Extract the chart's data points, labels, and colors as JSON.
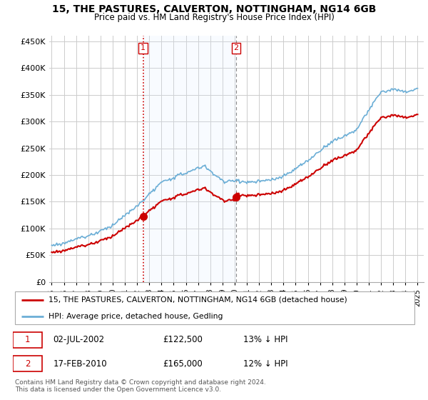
{
  "title": "15, THE PASTURES, CALVERTON, NOTTINGHAM, NG14 6GB",
  "subtitle": "Price paid vs. HM Land Registry's House Price Index (HPI)",
  "legend_line1": "15, THE PASTURES, CALVERTON, NOTTINGHAM, NG14 6GB (detached house)",
  "legend_line2": "HPI: Average price, detached house, Gedling",
  "transaction1_label": "1",
  "transaction1_date": "02-JUL-2002",
  "transaction1_price": "£122,500",
  "transaction1_hpi": "13% ↓ HPI",
  "transaction2_label": "2",
  "transaction2_date": "17-FEB-2010",
  "transaction2_price": "£165,000",
  "transaction2_hpi": "12% ↓ HPI",
  "footnote": "Contains HM Land Registry data © Crown copyright and database right 2024.\nThis data is licensed under the Open Government Licence v3.0.",
  "ylim": [
    0,
    460000
  ],
  "yticks": [
    0,
    50000,
    100000,
    150000,
    200000,
    250000,
    300000,
    350000,
    400000,
    450000
  ],
  "hpi_color": "#6baed6",
  "price_color": "#cc0000",
  "vline1_color": "#cc0000",
  "vline2_color": "#888888",
  "marker_color": "#cc0000",
  "span_color": "#ddeeff",
  "background_color": "#ffffff",
  "grid_color": "#cccccc",
  "transaction1_x": 2002.5,
  "transaction2_x": 2010.12,
  "price_t1": 122500,
  "price_t2": 165000
}
